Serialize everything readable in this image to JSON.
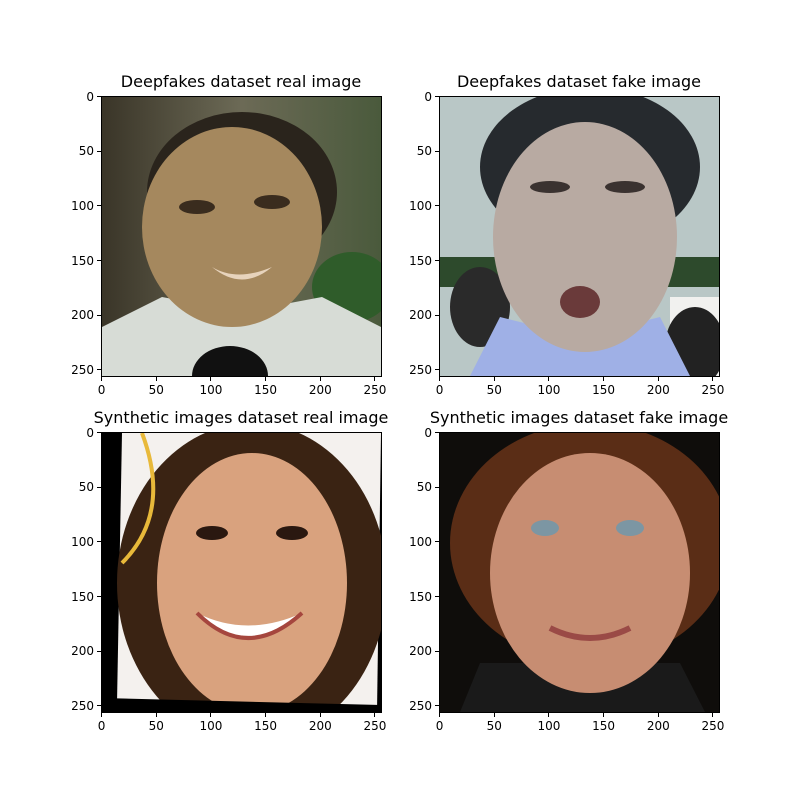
{
  "figure": {
    "panels": [
      {
        "id": "deepfakes-real",
        "title": "Deepfakes dataset real image",
        "x_ticks": [
          "0",
          "50",
          "100",
          "150",
          "200",
          "250"
        ],
        "y_ticks": [
          "0",
          "50",
          "100",
          "150",
          "200",
          "250"
        ],
        "image": {
          "subject": "man-face-news-interview-microphone",
          "colors": {
            "bg": "#5b5a48",
            "skin": "#a5885e",
            "hair": "#2a241c",
            "shirt": "#d7dcd6",
            "mic": "#111111",
            "accent": "#2f5c2a"
          }
        }
      },
      {
        "id": "deepfakes-fake",
        "title": "Deepfakes dataset fake image",
        "x_ticks": [
          "0",
          "50",
          "100",
          "150",
          "200",
          "250"
        ],
        "y_ticks": [
          "0",
          "50",
          "100",
          "150",
          "200",
          "250"
        ],
        "image": {
          "subject": "man-face-open-mouth-blue-shirt",
          "colors": {
            "bg": "#b9c7c6",
            "skin": "#b8aaa2",
            "hair": "#262a2e",
            "shirt": "#9fb0e6",
            "accent": "#f1f1ef"
          }
        }
      },
      {
        "id": "synthetic-real",
        "title": "Synthetic images dataset real image",
        "x_ticks": [
          "0",
          "50",
          "100",
          "150",
          "200",
          "250"
        ],
        "y_ticks": [
          "0",
          "50",
          "100",
          "150",
          "200",
          "250"
        ],
        "image": {
          "subject": "smiling-woman-long-dark-hair",
          "colors": {
            "bg": "#000000",
            "skin": "#d9a27e",
            "hair": "#3a2313",
            "accent": "#e8b93a",
            "wall": "#f4f1ee"
          }
        }
      },
      {
        "id": "synthetic-fake",
        "title": "Synthetic images dataset fake image",
        "x_ticks": [
          "0",
          "50",
          "100",
          "150",
          "200",
          "250"
        ],
        "y_ticks": [
          "0",
          "50",
          "100",
          "150",
          "200",
          "250"
        ],
        "image": {
          "subject": "woman-short-hair-blue-eyes-smiling",
          "colors": {
            "bg": "#0f0d0b",
            "skin": "#c78d72",
            "hair": "#5a2d16",
            "accent": "#1a1a1a",
            "eye": "#7c96a3"
          }
        }
      }
    ]
  }
}
